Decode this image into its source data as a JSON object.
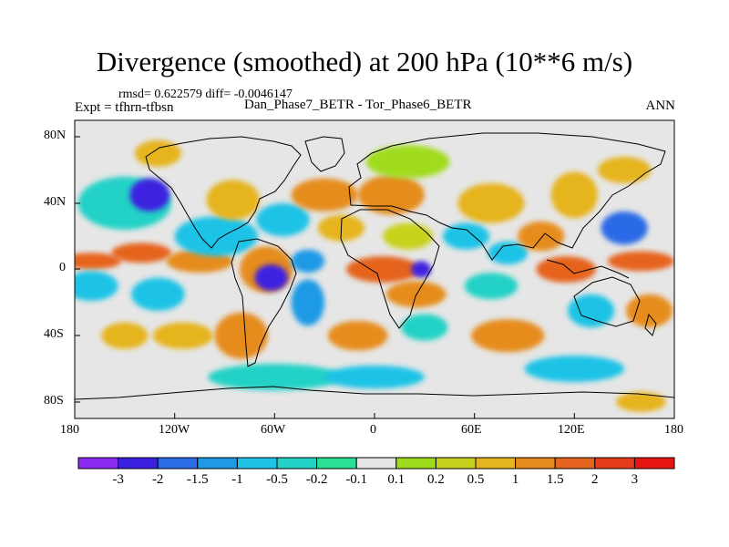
{
  "title": "Divergence (smoothed) at 200 hPa (10**6 m/s)",
  "stats": "rmsd= 0.622579 diff= -0.0046147",
  "experiment": "Expt = tfhrn-tfbsn",
  "comparison": "Dan_Phase7_BETR - Tor_Phase6_BETR",
  "season": "ANN",
  "axes": {
    "x_ticks": [
      "180",
      "120W",
      "60W",
      "0",
      "60E",
      "120E",
      "180"
    ],
    "y_ticks": [
      "80N",
      "40N",
      "0",
      "40S",
      "80S"
    ]
  },
  "colorbar": {
    "labels": [
      "-3",
      "-2",
      "-1.5",
      "-1",
      "-0.5",
      "-0.2",
      "-0.1",
      "0.1",
      "0.2",
      "0.5",
      "1",
      "1.5",
      "2",
      "3"
    ],
    "colors": [
      "#8c2bf0",
      "#3c20e0",
      "#2a6be6",
      "#1e9ae6",
      "#1ec3e6",
      "#23d2c6",
      "#28e096",
      "#e6e6e6",
      "#a0dc1e",
      "#c8d21e",
      "#e6b41e",
      "#e68c1e",
      "#e6641e",
      "#e63c1e",
      "#e61414"
    ]
  },
  "map": {
    "background_color": "#e6e6e6",
    "fields": [
      {
        "lon": -170,
        "lat": 5,
        "rx": 18,
        "ry": 5,
        "level": 12
      },
      {
        "lon": -170,
        "lat": -10,
        "rx": 16,
        "ry": 9,
        "level": 4
      },
      {
        "lon": -140,
        "lat": 10,
        "rx": 18,
        "ry": 6,
        "level": 12
      },
      {
        "lon": -130,
        "lat": -15,
        "rx": 16,
        "ry": 10,
        "level": 4
      },
      {
        "lon": -105,
        "lat": 5,
        "rx": 20,
        "ry": 7,
        "level": 11
      },
      {
        "lon": -95,
        "lat": 20,
        "rx": 25,
        "ry": 12,
        "level": 4
      },
      {
        "lon": -150,
        "lat": 40,
        "rx": 28,
        "ry": 16,
        "level": 5
      },
      {
        "lon": -150,
        "lat": -40,
        "rx": 14,
        "ry": 8,
        "level": 10
      },
      {
        "lon": -135,
        "lat": 45,
        "rx": 12,
        "ry": 10,
        "level": 1
      },
      {
        "lon": -130,
        "lat": 70,
        "rx": 14,
        "ry": 8,
        "level": 10
      },
      {
        "lon": -160,
        "lat": 70,
        "rx": 12,
        "ry": 6,
        "level": 7
      },
      {
        "lon": -85,
        "lat": 42,
        "rx": 16,
        "ry": 12,
        "level": 10
      },
      {
        "lon": -80,
        "lat": -40,
        "rx": 16,
        "ry": 14,
        "level": 11
      },
      {
        "lon": -115,
        "lat": -40,
        "rx": 18,
        "ry": 8,
        "level": 10
      },
      {
        "lon": -65,
        "lat": 0,
        "rx": 16,
        "ry": 14,
        "level": 11
      },
      {
        "lon": -62,
        "lat": -5,
        "rx": 10,
        "ry": 8,
        "level": 1
      },
      {
        "lon": -55,
        "lat": 30,
        "rx": 16,
        "ry": 10,
        "level": 4
      },
      {
        "lon": -40,
        "lat": -20,
        "rx": 10,
        "ry": 14,
        "level": 3
      },
      {
        "lon": -40,
        "lat": 5,
        "rx": 10,
        "ry": 7,
        "level": 3
      },
      {
        "lon": -30,
        "lat": 45,
        "rx": 20,
        "ry": 10,
        "level": 11
      },
      {
        "lon": -20,
        "lat": 25,
        "rx": 14,
        "ry": 8,
        "level": 10
      },
      {
        "lon": -35,
        "lat": 70,
        "rx": 14,
        "ry": 8,
        "level": 7
      },
      {
        "lon": 5,
        "lat": 0,
        "rx": 22,
        "ry": 8,
        "level": 12
      },
      {
        "lon": 10,
        "lat": 45,
        "rx": 20,
        "ry": 12,
        "level": 11
      },
      {
        "lon": 20,
        "lat": 20,
        "rx": 15,
        "ry": 8,
        "level": 9
      },
      {
        "lon": 28,
        "lat": 0,
        "rx": 6,
        "ry": 5,
        "level": 1
      },
      {
        "lon": 25,
        "lat": -15,
        "rx": 18,
        "ry": 8,
        "level": 11
      },
      {
        "lon": 30,
        "lat": -35,
        "rx": 14,
        "ry": 8,
        "level": 5
      },
      {
        "lon": -10,
        "lat": -40,
        "rx": 18,
        "ry": 9,
        "level": 11
      },
      {
        "lon": 20,
        "lat": 65,
        "rx": 25,
        "ry": 10,
        "level": 8
      },
      {
        "lon": 70,
        "lat": 40,
        "rx": 20,
        "ry": 12,
        "level": 10
      },
      {
        "lon": 55,
        "lat": 20,
        "rx": 14,
        "ry": 8,
        "level": 4
      },
      {
        "lon": 80,
        "lat": 10,
        "rx": 12,
        "ry": 7,
        "level": 4
      },
      {
        "lon": 70,
        "lat": -10,
        "rx": 16,
        "ry": 8,
        "level": 5
      },
      {
        "lon": 80,
        "lat": -40,
        "rx": 22,
        "ry": 10,
        "level": 11
      },
      {
        "lon": 100,
        "lat": 20,
        "rx": 14,
        "ry": 9,
        "level": 11
      },
      {
        "lon": 115,
        "lat": 0,
        "rx": 18,
        "ry": 8,
        "level": 12
      },
      {
        "lon": 120,
        "lat": 45,
        "rx": 14,
        "ry": 14,
        "level": 10
      },
      {
        "lon": 150,
        "lat": 25,
        "rx": 14,
        "ry": 10,
        "level": 2
      },
      {
        "lon": 130,
        "lat": -25,
        "rx": 14,
        "ry": 10,
        "level": 4
      },
      {
        "lon": 165,
        "lat": -25,
        "rx": 14,
        "ry": 10,
        "level": 11
      },
      {
        "lon": 160,
        "lat": 5,
        "rx": 20,
        "ry": 6,
        "level": 12
      },
      {
        "lon": 150,
        "lat": 60,
        "rx": 16,
        "ry": 8,
        "level": 10
      },
      {
        "lon": 120,
        "lat": -60,
        "rx": 30,
        "ry": 8,
        "level": 4
      },
      {
        "lon": -60,
        "lat": -65,
        "rx": 40,
        "ry": 8,
        "level": 5
      },
      {
        "lon": 0,
        "lat": -65,
        "rx": 30,
        "ry": 7,
        "level": 4
      },
      {
        "lon": 160,
        "lat": -80,
        "rx": 15,
        "ry": 6,
        "level": 10
      }
    ]
  }
}
